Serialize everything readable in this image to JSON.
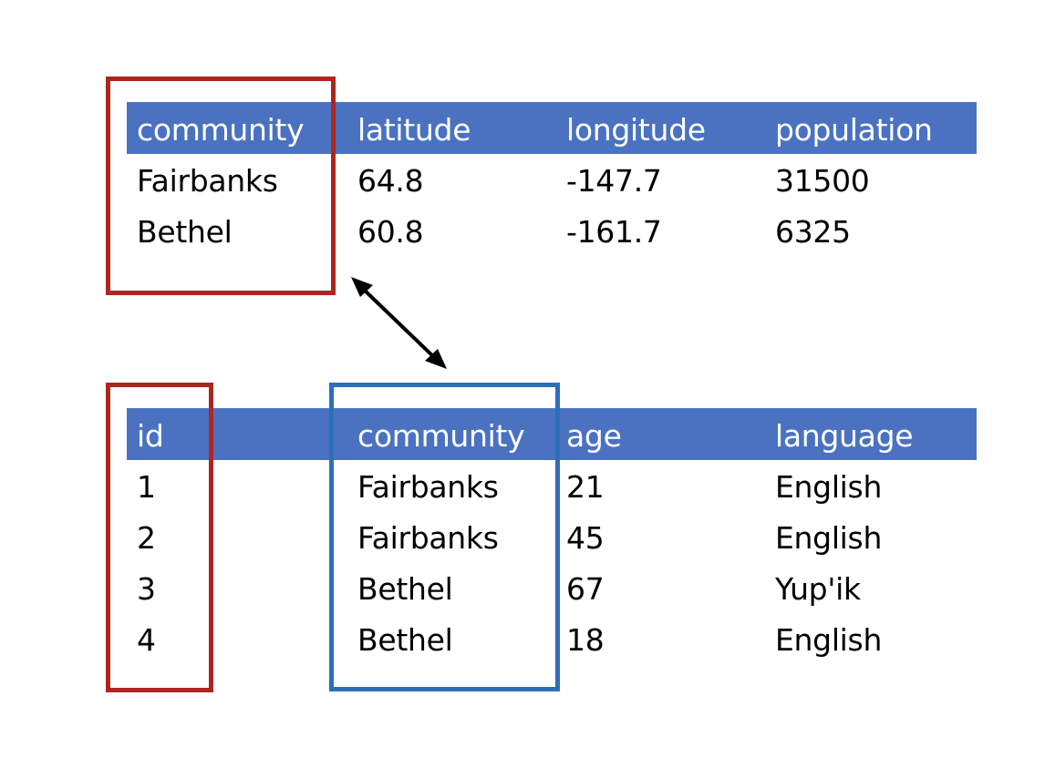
{
  "communities_table": {
    "columns": [
      "community",
      "latitude",
      "longitude",
      "population"
    ],
    "rows": [
      [
        "Fairbanks",
        "64.8",
        "-147.7",
        "31500"
      ],
      [
        "Bethel",
        "60.8",
        "-161.7",
        "6325"
      ]
    ]
  },
  "people_table": {
    "columns": [
      "id",
      "community",
      "age",
      "language"
    ],
    "rows": [
      [
        "1",
        "Fairbanks",
        "21",
        "English"
      ],
      [
        "2",
        "Fairbanks",
        "45",
        "English"
      ],
      [
        "3",
        "Bethel",
        "67",
        "Yup'ik"
      ],
      [
        "4",
        "Bethel",
        "18",
        "English"
      ]
    ]
  },
  "colors": {
    "header_fill": "#4a72c1",
    "primary_key_highlight": "#ad2620",
    "foreign_key_highlight": "#2c6fb9",
    "arrow": "#000000"
  }
}
